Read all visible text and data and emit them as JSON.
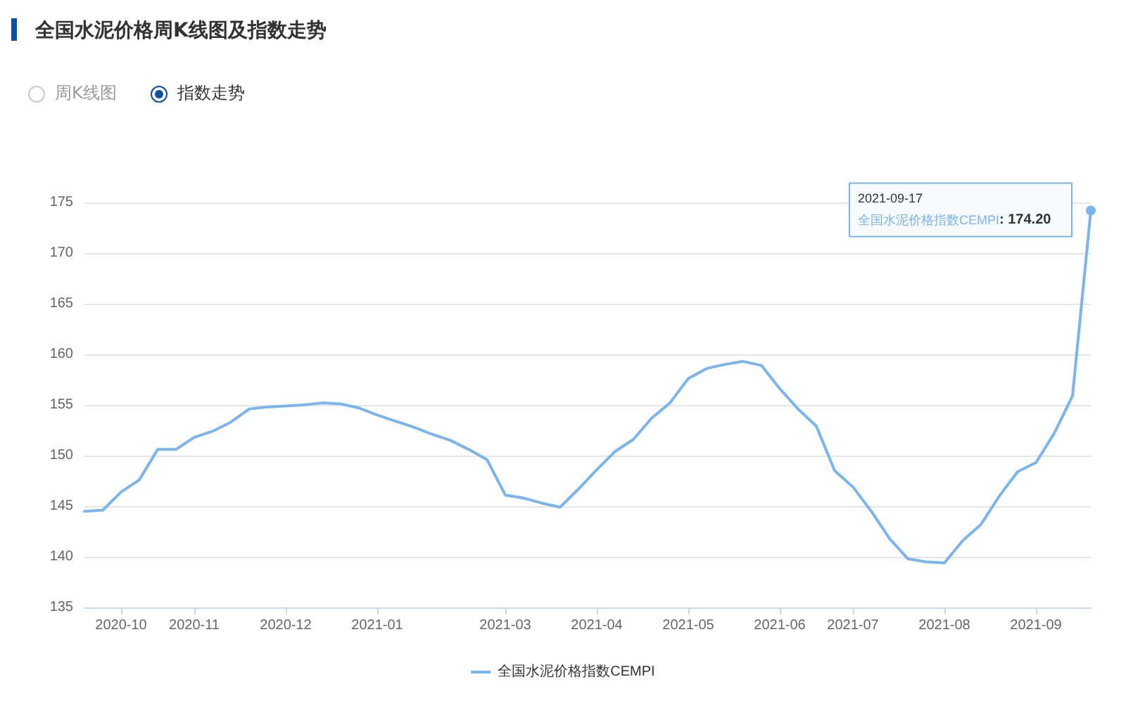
{
  "chart_data": {
    "type": "line",
    "title": "全国水泥价格周K线图及指数走势",
    "categories": [
      null,
      null,
      "2020-10",
      null,
      null,
      null,
      "2020-11",
      null,
      null,
      null,
      null,
      "2020-12",
      null,
      null,
      null,
      null,
      "2021-01",
      null,
      null,
      null,
      null,
      null,
      null,
      "2021-03",
      null,
      null,
      null,
      null,
      "2021-04",
      null,
      null,
      null,
      null,
      "2021-05",
      null,
      null,
      null,
      null,
      "2021-06",
      null,
      null,
      null,
      "2021-07",
      null,
      null,
      null,
      null,
      "2021-08",
      null,
      null,
      null,
      null,
      "2021-09",
      null,
      null,
      null
    ],
    "series": [
      {
        "name": "全国水泥价格指数CEMPI",
        "color": "#7cb5ec",
        "values": [
          144.5,
          144.6,
          146.4,
          147.6,
          150.6,
          150.6,
          151.8,
          152.4,
          153.3,
          154.6,
          154.8,
          154.9,
          155.0,
          155.2,
          155.1,
          154.7,
          154.0,
          153.4,
          152.8,
          152.1,
          151.5,
          150.6,
          149.6,
          146.1,
          145.8,
          145.3,
          144.9,
          146.7,
          148.6,
          150.4,
          151.6,
          153.7,
          155.2,
          157.6,
          158.6,
          159.0,
          159.3,
          158.9,
          156.6,
          154.6,
          152.9,
          148.5,
          146.9,
          144.5,
          141.8,
          139.8,
          139.5,
          139.4,
          141.6,
          143.2,
          146.0,
          148.4,
          149.3,
          152.2,
          155.9,
          174.2
        ]
      }
    ],
    "ylim": [
      135,
      175
    ],
    "yticks": [
      135,
      140,
      145,
      150,
      155,
      160,
      165,
      170,
      175
    ],
    "grid": "y",
    "legend": "bottom",
    "annotations": [
      "周K线图",
      "指数走势",
      "2021-09-17",
      ": 174.20"
    ]
  }
}
